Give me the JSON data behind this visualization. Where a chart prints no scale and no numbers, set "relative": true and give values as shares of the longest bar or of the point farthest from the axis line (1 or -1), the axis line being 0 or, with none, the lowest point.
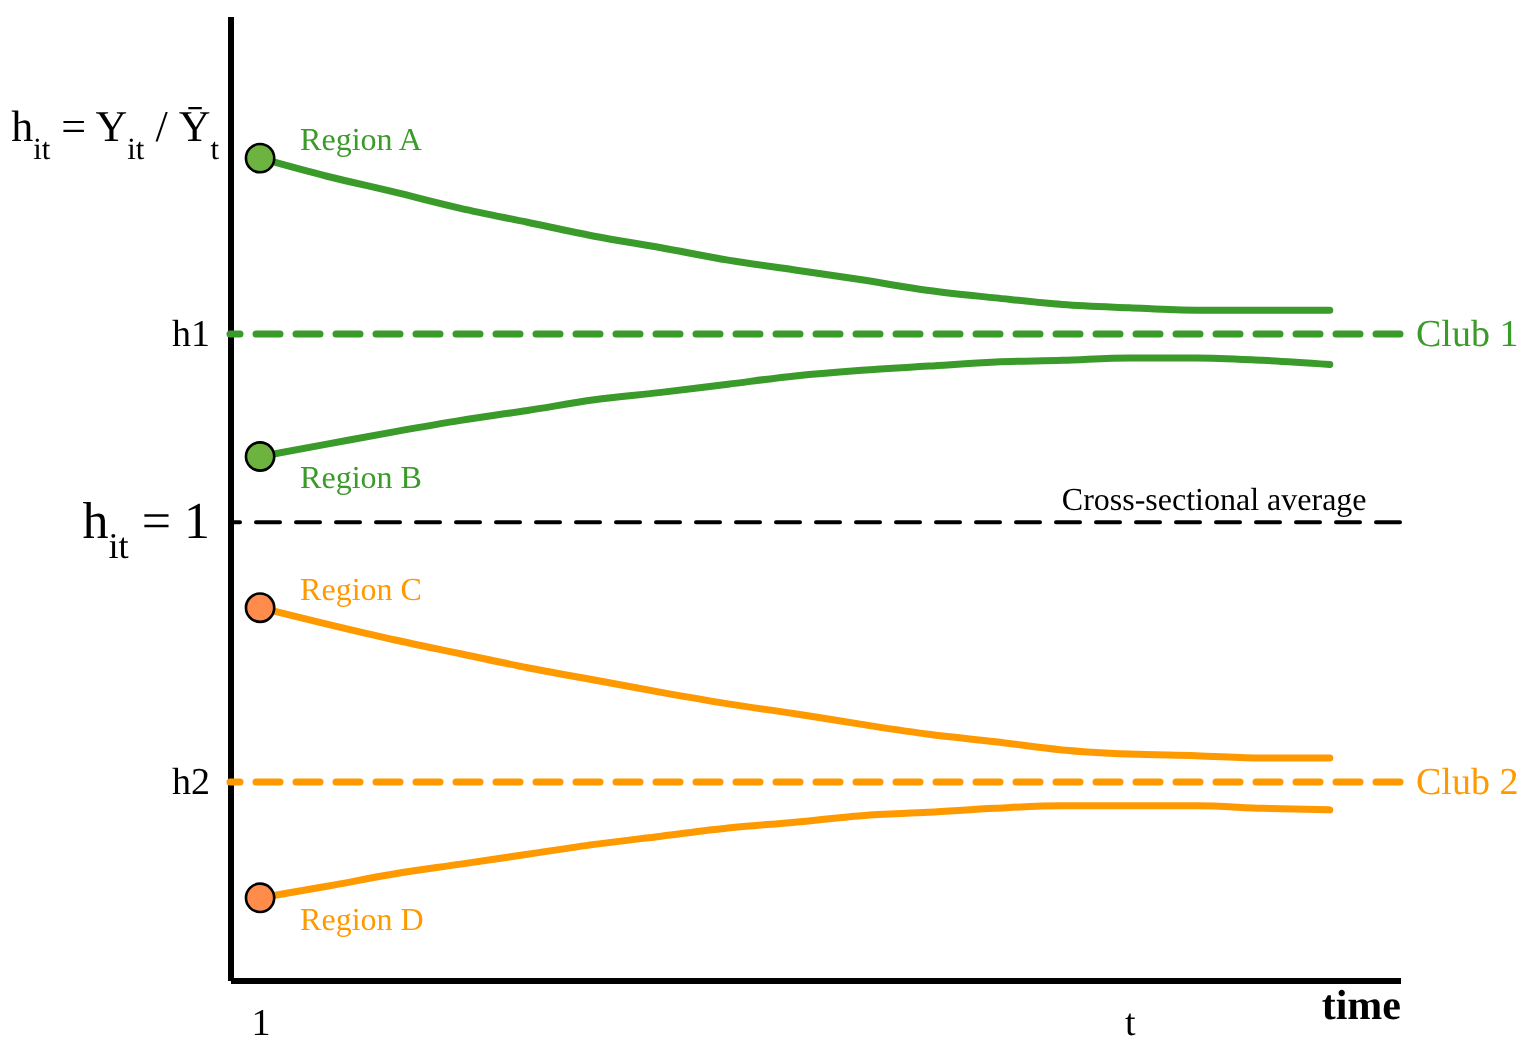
{
  "chart_data": {
    "type": "line",
    "relative": true,
    "xlabel": "time",
    "ylabel": "h$_{it}$ = Y$_{it}$ / Ȳ$_{t}$",
    "categories": [
      "1",
      null,
      null,
      null,
      null,
      null,
      null,
      null,
      null,
      null,
      null,
      null,
      null,
      "t",
      null,
      null,
      null
    ],
    "series": [
      {
        "name": "Region A",
        "color": "#3a9a2a",
        "values": [
          1.0,
          0.978,
          0.959,
          0.939,
          0.922,
          0.905,
          0.891,
          0.876,
          0.864,
          0.852,
          0.839,
          0.83,
          0.822,
          0.818,
          0.815,
          0.815,
          0.815
        ]
      },
      {
        "name": "Region B",
        "color": "#3a9a2a",
        "values": [
          0.637,
          0.652,
          0.667,
          0.681,
          0.693,
          0.706,
          0.715,
          0.725,
          0.735,
          0.742,
          0.747,
          0.752,
          0.754,
          0.757,
          0.757,
          0.754,
          0.749
        ]
      },
      {
        "name": "Region C",
        "color": "#ff9900",
        "values": [
          0.453,
          0.433,
          0.414,
          0.397,
          0.38,
          0.365,
          0.35,
          0.336,
          0.324,
          0.311,
          0.299,
          0.29,
          0.28,
          0.275,
          0.273,
          0.27,
          0.27
        ]
      },
      {
        "name": "Region D",
        "color": "#ff9900",
        "values": [
          0.1,
          0.114,
          0.129,
          0.141,
          0.153,
          0.165,
          0.175,
          0.185,
          0.192,
          0.2,
          0.204,
          0.209,
          0.212,
          0.212,
          0.212,
          0.209,
          0.207
        ]
      },
      {
        "type": "scatter",
        "x": [
          "1",
          "1",
          "1",
          "1"
        ],
        "values": [
          1.0,
          0.637,
          0.453,
          0.1
        ],
        "colors": [
          "#6db33f",
          "#6db33f",
          "#ff8c4a",
          "#ff8c4a"
        ]
      }
    ],
    "ref_lines": [
      {
        "axis": "y",
        "value": 0.786,
        "label": "h1",
        "color": "#3a9a2a",
        "line_style": "dashed"
      },
      {
        "axis": "y",
        "value": 0.557,
        "label": "h$_{it}$ = 1",
        "color": "#000000",
        "line_style": "dashed"
      },
      {
        "axis": "y",
        "value": 0.241,
        "label": "h2",
        "color": "#ff9900",
        "line_style": "dashed"
      }
    ],
    "annotations": [
      "Club 1",
      "Cross-sectional average",
      "Club 2"
    ]
  }
}
